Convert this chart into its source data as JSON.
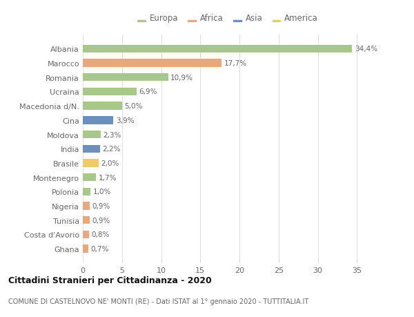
{
  "countries": [
    "Albania",
    "Marocco",
    "Romania",
    "Ucraina",
    "Macedonia d/N.",
    "Cina",
    "Moldova",
    "India",
    "Brasile",
    "Montenegro",
    "Polonia",
    "Nigeria",
    "Tunisia",
    "Costa d'Avorio",
    "Ghana"
  ],
  "values": [
    34.4,
    17.7,
    10.9,
    6.9,
    5.0,
    3.9,
    2.3,
    2.2,
    2.0,
    1.7,
    1.0,
    0.9,
    0.9,
    0.8,
    0.7
  ],
  "labels": [
    "34,4%",
    "17,7%",
    "10,9%",
    "6,9%",
    "5,0%",
    "3,9%",
    "2,3%",
    "2,2%",
    "2,0%",
    "1,7%",
    "1,0%",
    "0,9%",
    "0,9%",
    "0,8%",
    "0,7%"
  ],
  "continents": [
    "Europa",
    "Africa",
    "Europa",
    "Europa",
    "Europa",
    "Asia",
    "Europa",
    "Asia",
    "America",
    "Europa",
    "Europa",
    "Africa",
    "Africa",
    "Africa",
    "Africa"
  ],
  "colors": {
    "Europa": "#a8c88a",
    "Africa": "#e8a87c",
    "Asia": "#6b8fbf",
    "America": "#f0c96b"
  },
  "legend_order": [
    "Europa",
    "Africa",
    "Asia",
    "America"
  ],
  "title": "Cittadini Stranieri per Cittadinanza - 2020",
  "subtitle": "COMUNE DI CASTELNOVO NE' MONTI (RE) - Dati ISTAT al 1° gennaio 2020 - TUTTITALIA.IT",
  "xlim": [
    0,
    37
  ],
  "xticks": [
    0,
    5,
    10,
    15,
    20,
    25,
    30,
    35
  ],
  "background_color": "#ffffff",
  "grid_color": "#dddddd"
}
